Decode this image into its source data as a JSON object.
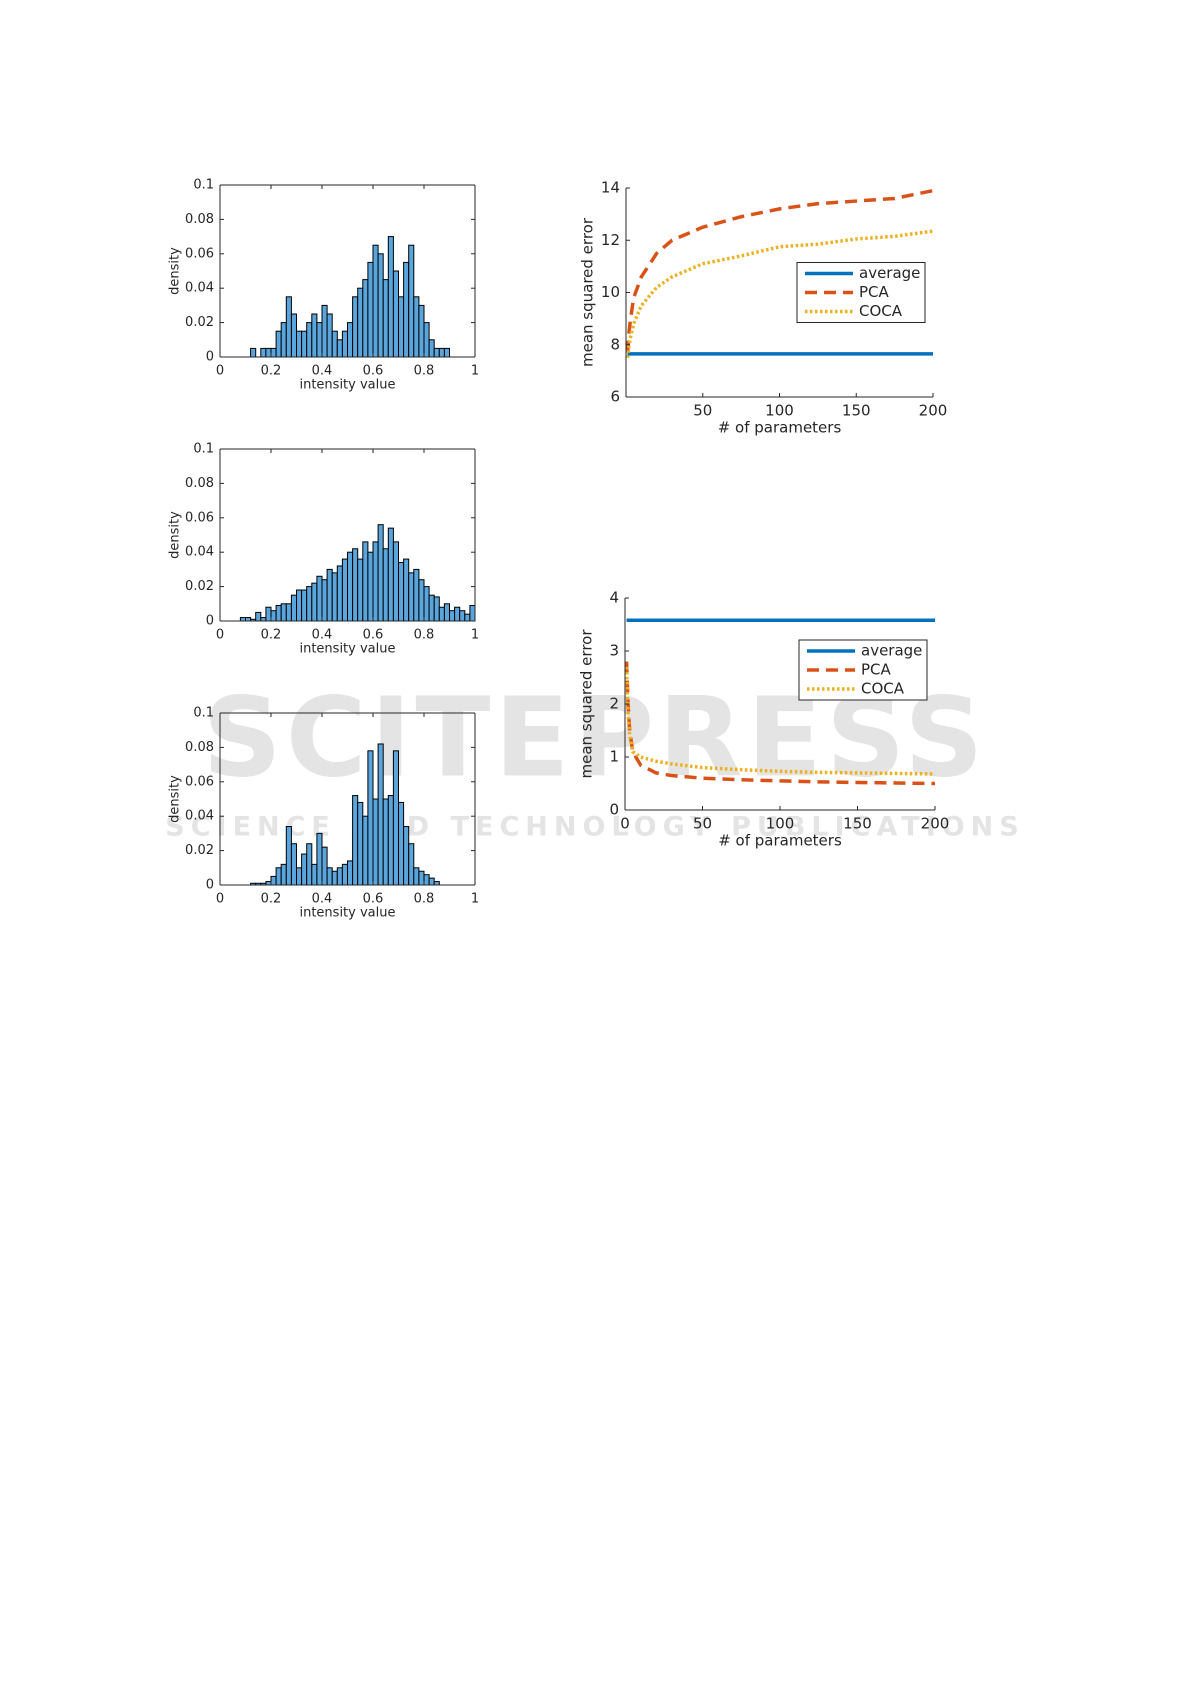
{
  "watermark": {
    "title": "SCITEPRESS",
    "subtitle": "SCIENCE AND TECHNOLOGY PUBLICATIONS"
  },
  "chart_data": [
    {
      "type": "histogram",
      "xlabel": "intensity value",
      "ylabel": "density",
      "color": "#5aa5dc",
      "bins": [
        0,
        0.02,
        0.04,
        0.06,
        0.08,
        0.1,
        0.12,
        0.14,
        0.16,
        0.18,
        0.2,
        0.22,
        0.24,
        0.26,
        0.28,
        0.3,
        0.32,
        0.34,
        0.36,
        0.38,
        0.4,
        0.42,
        0.44,
        0.46,
        0.48,
        0.5,
        0.52,
        0.54,
        0.56,
        0.58,
        0.6,
        0.62,
        0.64,
        0.66,
        0.68,
        0.7,
        0.72,
        0.74,
        0.76,
        0.78,
        0.8,
        0.82,
        0.84,
        0.86,
        0.88,
        0.9,
        0.92,
        0.94,
        0.96,
        0.98,
        1
      ],
      "values": [
        0,
        0,
        0,
        0,
        0,
        0,
        0.005,
        0,
        0.005,
        0.005,
        0.005,
        0.015,
        0.02,
        0.035,
        0.025,
        0.015,
        0.015,
        0.02,
        0.025,
        0.02,
        0.03,
        0.025,
        0.015,
        0.01,
        0.015,
        0.02,
        0.035,
        0.04,
        0.045,
        0.055,
        0.065,
        0.06,
        0.045,
        0.07,
        0.05,
        0.035,
        0.055,
        0.065,
        0.035,
        0.03,
        0.02,
        0.01,
        0.005,
        0.005,
        0.005,
        0,
        0,
        0,
        0,
        0
      ],
      "xlim": [
        0,
        1
      ],
      "ylim": [
        0,
        0.1
      ],
      "xticks": [
        0,
        0.2,
        0.4,
        0.6,
        0.8,
        1
      ],
      "yticks": [
        0,
        0.02,
        0.04,
        0.06,
        0.08,
        0.1
      ]
    },
    {
      "type": "histogram",
      "xlabel": "intensity value",
      "ylabel": "density",
      "color": "#5aa5dc",
      "bins": [
        0,
        0.02,
        0.04,
        0.06,
        0.08,
        0.1,
        0.12,
        0.14,
        0.16,
        0.18,
        0.2,
        0.22,
        0.24,
        0.26,
        0.28,
        0.3,
        0.32,
        0.34,
        0.36,
        0.38,
        0.4,
        0.42,
        0.44,
        0.46,
        0.48,
        0.5,
        0.52,
        0.54,
        0.56,
        0.58,
        0.6,
        0.62,
        0.64,
        0.66,
        0.68,
        0.7,
        0.72,
        0.74,
        0.76,
        0.78,
        0.8,
        0.82,
        0.84,
        0.86,
        0.88,
        0.9,
        0.92,
        0.94,
        0.96,
        0.98,
        1
      ],
      "values": [
        0,
        0,
        0,
        0,
        0.002,
        0.002,
        0.001,
        0.005,
        0.002,
        0.008,
        0.006,
        0.009,
        0.01,
        0.01,
        0.015,
        0.018,
        0.018,
        0.02,
        0.022,
        0.026,
        0.024,
        0.03,
        0.028,
        0.032,
        0.036,
        0.04,
        0.042,
        0.036,
        0.046,
        0.04,
        0.046,
        0.056,
        0.042,
        0.054,
        0.046,
        0.034,
        0.036,
        0.028,
        0.03,
        0.024,
        0.02,
        0.015,
        0.014,
        0.008,
        0.01,
        0.006,
        0.008,
        0.006,
        0.004,
        0.009
      ],
      "xlim": [
        0,
        1
      ],
      "ylim": [
        0,
        0.1
      ],
      "xticks": [
        0,
        0.2,
        0.4,
        0.6,
        0.8,
        1
      ],
      "yticks": [
        0,
        0.02,
        0.04,
        0.06,
        0.08,
        0.1
      ]
    },
    {
      "type": "histogram",
      "xlabel": "intensity value",
      "ylabel": "density",
      "color": "#5aa5dc",
      "bins": [
        0,
        0.02,
        0.04,
        0.06,
        0.08,
        0.1,
        0.12,
        0.14,
        0.16,
        0.18,
        0.2,
        0.22,
        0.24,
        0.26,
        0.28,
        0.3,
        0.32,
        0.34,
        0.36,
        0.38,
        0.4,
        0.42,
        0.44,
        0.46,
        0.48,
        0.5,
        0.52,
        0.54,
        0.56,
        0.58,
        0.6,
        0.62,
        0.64,
        0.66,
        0.68,
        0.7,
        0.72,
        0.74,
        0.76,
        0.78,
        0.8,
        0.82,
        0.84,
        0.86,
        0.88,
        0.9,
        0.92,
        0.94,
        0.96,
        0.98,
        1
      ],
      "values": [
        0,
        0,
        0,
        0,
        0,
        0,
        0.001,
        0.001,
        0.001,
        0.002,
        0.005,
        0.01,
        0.012,
        0.034,
        0.024,
        0.01,
        0.018,
        0.024,
        0.012,
        0.03,
        0.022,
        0.01,
        0.008,
        0.01,
        0.012,
        0.014,
        0.052,
        0.048,
        0.04,
        0.078,
        0.05,
        0.082,
        0.05,
        0.052,
        0.078,
        0.048,
        0.034,
        0.024,
        0.01,
        0.008,
        0.006,
        0.004,
        0.002,
        0,
        0,
        0,
        0,
        0,
        0,
        0
      ],
      "xlim": [
        0,
        1
      ],
      "ylim": [
        0,
        0.1
      ],
      "xticks": [
        0,
        0.2,
        0.4,
        0.6,
        0.8,
        1
      ],
      "yticks": [
        0,
        0.02,
        0.04,
        0.06,
        0.08,
        0.1
      ]
    },
    {
      "type": "line",
      "xlabel": "# of parameters",
      "ylabel": "mean squared error",
      "legend": "east",
      "x": [
        1,
        2,
        3,
        5,
        10,
        20,
        30,
        50,
        75,
        100,
        125,
        150,
        175,
        200
      ],
      "series": [
        {
          "name": "average",
          "color": "#0072bd",
          "style": "solid",
          "values": [
            7.65,
            7.65,
            7.65,
            7.65,
            7.65,
            7.65,
            7.65,
            7.65,
            7.65,
            7.65,
            7.65,
            7.65,
            7.65,
            7.65
          ]
        },
        {
          "name": "PCA",
          "color": "#d95319",
          "style": "dashed",
          "values": [
            7.7,
            8.5,
            9,
            9.8,
            10.6,
            11.5,
            12,
            12.5,
            12.9,
            13.2,
            13.4,
            13.5,
            13.6,
            13.9
          ]
        },
        {
          "name": "COCA",
          "color": "#edb120",
          "style": "dotted",
          "values": [
            7.5,
            8,
            8.3,
            8.8,
            9.5,
            10.2,
            10.6,
            11.1,
            11.4,
            11.75,
            11.85,
            12.05,
            12.15,
            12.35
          ]
        }
      ],
      "xlim": [
        0,
        200
      ],
      "ylim": [
        6,
        14
      ],
      "xticks": [
        50,
        100,
        150,
        200
      ],
      "yticks": [
        6,
        8,
        10,
        12,
        14
      ]
    },
    {
      "type": "line",
      "xlabel": "# of parameters",
      "ylabel": "mean squared error",
      "legend": "northeast",
      "x": [
        1,
        2,
        3,
        5,
        10,
        20,
        30,
        50,
        75,
        100,
        125,
        150,
        175,
        200
      ],
      "series": [
        {
          "name": "average",
          "color": "#0072bd",
          "style": "solid",
          "values": [
            3.58,
            3.58,
            3.58,
            3.58,
            3.58,
            3.58,
            3.58,
            3.58,
            3.58,
            3.58,
            3.58,
            3.58,
            3.58,
            3.58
          ]
        },
        {
          "name": "PCA",
          "color": "#d95319",
          "style": "dashed",
          "values": [
            2.8,
            2,
            1.5,
            1.1,
            0.85,
            0.7,
            0.65,
            0.6,
            0.57,
            0.55,
            0.53,
            0.52,
            0.51,
            0.5
          ]
        },
        {
          "name": "COCA",
          "color": "#edb120",
          "style": "dotted",
          "values": [
            2.7,
            1.8,
            1.4,
            1.1,
            1,
            0.92,
            0.87,
            0.8,
            0.76,
            0.73,
            0.71,
            0.7,
            0.69,
            0.68
          ]
        }
      ],
      "xlim": [
        0,
        200
      ],
      "ylim": [
        0,
        4
      ],
      "xticks": [
        0,
        50,
        100,
        150,
        200
      ],
      "yticks": [
        0,
        1,
        2,
        3,
        4
      ]
    }
  ]
}
